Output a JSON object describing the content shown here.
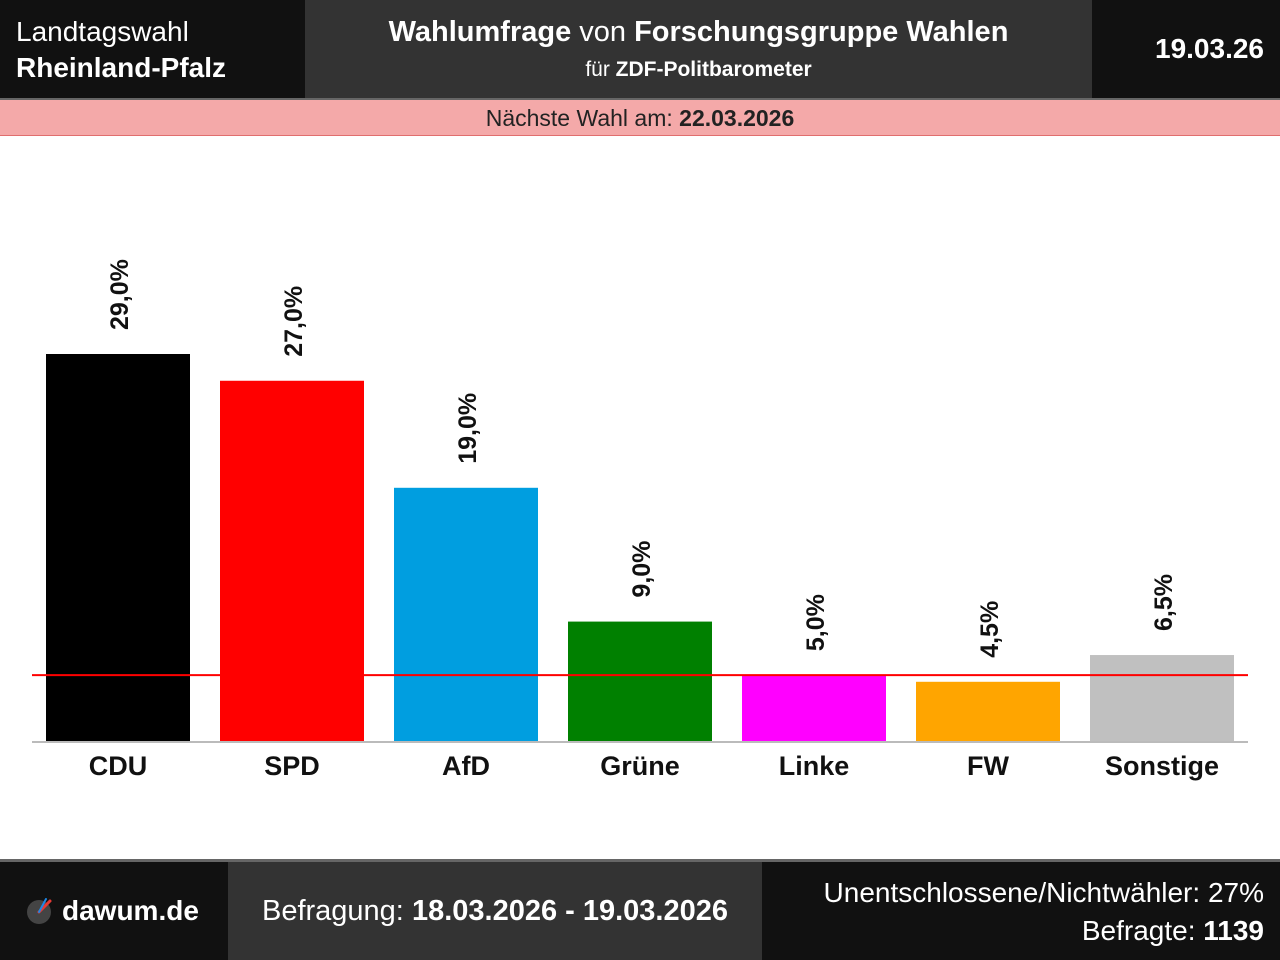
{
  "header": {
    "election_type": "Landtagswahl",
    "state": "Rheinland-Pfalz",
    "title_part1": "Wahlumfrage",
    "title_part2": " von ",
    "institute": "Forschungsgruppe Wahlen",
    "subtitle_prefix": "für ",
    "client": "ZDF-Politbarometer",
    "date": "19.03.26"
  },
  "next_election": {
    "label": "Nächste Wahl am: ",
    "date": "22.03.2026"
  },
  "chart_data": {
    "type": "bar",
    "categories": [
      "CDU",
      "SPD",
      "AfD",
      "Grüne",
      "Linke",
      "FW",
      "Sonstige"
    ],
    "values": [
      29.0,
      27.0,
      19.0,
      9.0,
      5.0,
      4.5,
      6.5
    ],
    "value_labels": [
      "29,0%",
      "27,0%",
      "19,0%",
      "9,0%",
      "5,0%",
      "4,5%",
      "6,5%"
    ],
    "colors": [
      "#000000",
      "#ff0000",
      "#009ee0",
      "#008000",
      "#ff00ff",
      "#ffa500",
      "#c0c0c0"
    ],
    "threshold": 5,
    "threshold_color": "#ff0000",
    "ylim": [
      0,
      29
    ],
    "title": "",
    "xlabel": "",
    "ylabel": ""
  },
  "footer": {
    "brand": "dawum.de",
    "survey_label": "Befragung: ",
    "survey_period": "18.03.2026 - 19.03.2026",
    "undecided_label": "Unentschlossene/Nichtwähler: ",
    "undecided_value": "27%",
    "respondents_label": "Befragte: ",
    "respondents_value": "1139"
  }
}
